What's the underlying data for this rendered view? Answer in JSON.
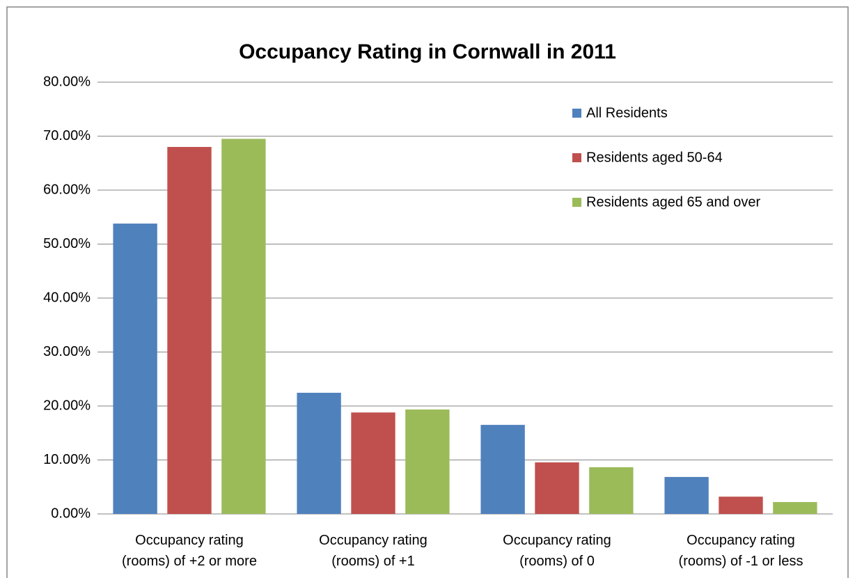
{
  "chart_data": {
    "type": "bar",
    "title": "Occupancy Rating in Cornwall in 2011",
    "categories": [
      "Occupancy rating\n(rooms) of +2 or more",
      "Occupancy rating\n(rooms) of +1",
      "Occupancy rating\n(rooms) of 0",
      "Occupancy rating\n(rooms) of -1 or less"
    ],
    "series": [
      {
        "name": "All Residents",
        "color": "#4f81bd",
        "values": [
          53.8,
          22.45,
          16.5,
          6.85
        ]
      },
      {
        "name": "Residents aged 50-64",
        "color": "#c0504d",
        "values": [
          68.0,
          18.8,
          9.55,
          3.2
        ]
      },
      {
        "name": "Residents aged 65 and over",
        "color": "#9bbb59",
        "values": [
          69.5,
          19.35,
          8.65,
          2.2
        ]
      }
    ],
    "ylim": [
      0,
      80
    ],
    "yticks": [
      {
        "value": 0,
        "label": "0.00%"
      },
      {
        "value": 10,
        "label": "10.00%"
      },
      {
        "value": 20,
        "label": "20.00%"
      },
      {
        "value": 30,
        "label": "30.00%"
      },
      {
        "value": 40,
        "label": "40.00%"
      },
      {
        "value": 50,
        "label": "50.00%"
      },
      {
        "value": 60,
        "label": "60.00%"
      },
      {
        "value": 70,
        "label": "70.00%"
      },
      {
        "value": 80,
        "label": "80.00%"
      }
    ],
    "grid": true,
    "legend": "upper right"
  }
}
